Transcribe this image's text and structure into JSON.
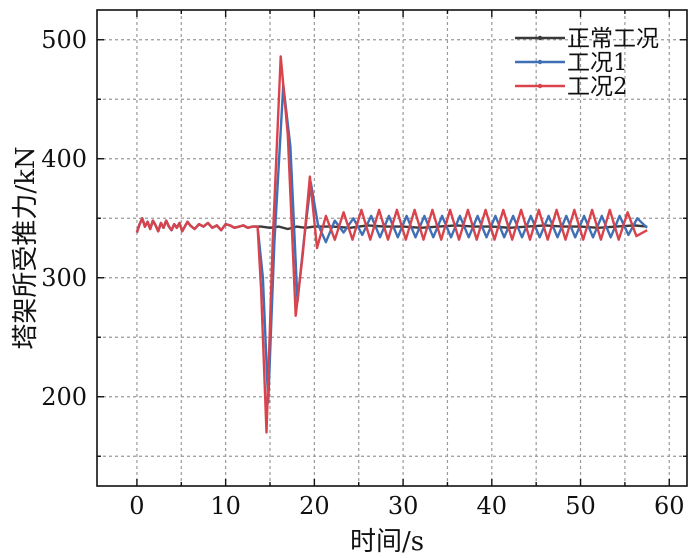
{
  "chart_data": {
    "type": "line",
    "xlabel": "时间/s",
    "ylabel": "塔架所受推力/kN",
    "xlim": [
      -4.5,
      62
    ],
    "ylim": [
      125,
      525
    ],
    "xticks": [
      0,
      10,
      20,
      30,
      40,
      50,
      60
    ],
    "yticks": [
      200,
      300,
      400,
      500
    ],
    "grid": true,
    "legend": "top-right",
    "series": [
      {
        "name": "正常工况",
        "color": "#3a3a3a",
        "x": [
          0,
          0.3,
          0.6,
          0.9,
          1.2,
          1.5,
          1.8,
          2.1,
          2.4,
          2.7,
          3.0,
          3.3,
          3.6,
          3.9,
          4.2,
          4.5,
          4.8,
          5.1,
          5.4,
          5.7,
          6.0,
          6.5,
          7.0,
          7.5,
          8.0,
          8.5,
          9.0,
          9.5,
          10.0,
          10.5,
          11.0,
          11.5,
          12.0,
          12.5,
          13.0,
          14,
          15,
          16,
          17,
          18,
          19,
          20,
          22,
          24,
          26,
          28,
          30,
          32,
          34,
          36,
          38,
          40,
          42,
          44,
          46,
          48,
          50,
          52,
          54,
          56,
          57.5
        ],
        "y": [
          338,
          345,
          350,
          343,
          347,
          341,
          348,
          344,
          339,
          346,
          342,
          348,
          343,
          340,
          345,
          342,
          346,
          339,
          343,
          347,
          344,
          341,
          345,
          343,
          346,
          342,
          344,
          340,
          345,
          344,
          342,
          343,
          344,
          342,
          343,
          343,
          342,
          343,
          341,
          343,
          342,
          343,
          343,
          342,
          344,
          343,
          343,
          342,
          343,
          344,
          343,
          343,
          342,
          343,
          344,
          343,
          343,
          342,
          343,
          344,
          343
        ]
      },
      {
        "name": "工况1",
        "color": "#3f6fb5",
        "x": [
          0,
          0.3,
          0.6,
          0.9,
          1.2,
          1.5,
          1.8,
          2.1,
          2.4,
          2.7,
          3.0,
          3.3,
          3.6,
          3.9,
          4.2,
          4.5,
          4.8,
          5.1,
          5.4,
          5.7,
          6.0,
          6.5,
          7.0,
          7.5,
          8.0,
          8.5,
          9.0,
          9.5,
          10.0,
          10.5,
          11.0,
          11.5,
          12.0,
          12.5,
          13.0,
          13.6,
          14.2,
          14.8,
          15.5,
          16.5,
          17.3,
          18.1,
          18.8,
          19.6,
          20.4,
          21.3,
          22.3,
          23.3,
          24.4,
          25.4,
          26.4,
          27.4,
          28.4,
          29.4,
          30.4,
          31.4,
          32.4,
          33.4,
          34.4,
          35.4,
          36.4,
          37.4,
          38.4,
          39.4,
          40.4,
          41.4,
          42.4,
          43.4,
          44.4,
          45.4,
          46.4,
          47.4,
          48.4,
          49.4,
          50.4,
          51.4,
          52.4,
          53.4,
          54.4,
          55.4,
          56.4,
          57.5
        ],
        "y": [
          338,
          345,
          350,
          343,
          347,
          341,
          348,
          344,
          339,
          346,
          342,
          348,
          343,
          340,
          345,
          342,
          346,
          339,
          343,
          347,
          344,
          341,
          345,
          343,
          346,
          342,
          344,
          340,
          345,
          344,
          342,
          343,
          344,
          342,
          343,
          343,
          300,
          195,
          330,
          462,
          410,
          280,
          330,
          380,
          345,
          330,
          348,
          338,
          350,
          336,
          352,
          334,
          352,
          334,
          352,
          334,
          352,
          334,
          352,
          334,
          352,
          334,
          352,
          334,
          352,
          334,
          352,
          334,
          352,
          334,
          352,
          334,
          352,
          334,
          352,
          334,
          352,
          334,
          352,
          336,
          350,
          342
        ]
      },
      {
        "name": "工况2",
        "color": "#d9434b",
        "x": [
          0,
          0.3,
          0.6,
          0.9,
          1.2,
          1.5,
          1.8,
          2.1,
          2.4,
          2.7,
          3.0,
          3.3,
          3.6,
          3.9,
          4.2,
          4.5,
          4.8,
          5.1,
          5.4,
          5.7,
          6.0,
          6.5,
          7.0,
          7.5,
          8.0,
          8.5,
          9.0,
          9.5,
          10.0,
          10.5,
          11.0,
          11.5,
          12.0,
          12.5,
          13.0,
          13.6,
          14.0,
          14.6,
          15.3,
          16.2,
          17.0,
          17.9,
          18.7,
          19.5,
          20.3,
          21.3,
          22.3,
          23.3,
          24.3,
          25.3,
          26.3,
          27.3,
          28.3,
          29.3,
          30.3,
          31.3,
          32.3,
          33.3,
          34.3,
          35.3,
          36.3,
          37.3,
          38.3,
          39.3,
          40.3,
          41.3,
          42.3,
          43.3,
          44.3,
          45.3,
          46.3,
          47.3,
          48.3,
          49.3,
          50.3,
          51.3,
          52.3,
          53.3,
          54.3,
          55.3,
          56.3,
          57.5
        ],
        "y": [
          338,
          345,
          350,
          343,
          347,
          341,
          348,
          344,
          339,
          346,
          342,
          348,
          343,
          340,
          345,
          342,
          346,
          339,
          343,
          347,
          344,
          341,
          345,
          343,
          346,
          342,
          344,
          340,
          345,
          344,
          342,
          343,
          344,
          342,
          343,
          343,
          290,
          170,
          330,
          486,
          420,
          268,
          320,
          385,
          325,
          352,
          332,
          355,
          332,
          357,
          332,
          357,
          332,
          357,
          332,
          357,
          332,
          357,
          332,
          357,
          332,
          357,
          332,
          357,
          332,
          357,
          332,
          357,
          332,
          357,
          332,
          357,
          332,
          357,
          332,
          357,
          332,
          357,
          332,
          355,
          335,
          340
        ]
      }
    ]
  }
}
